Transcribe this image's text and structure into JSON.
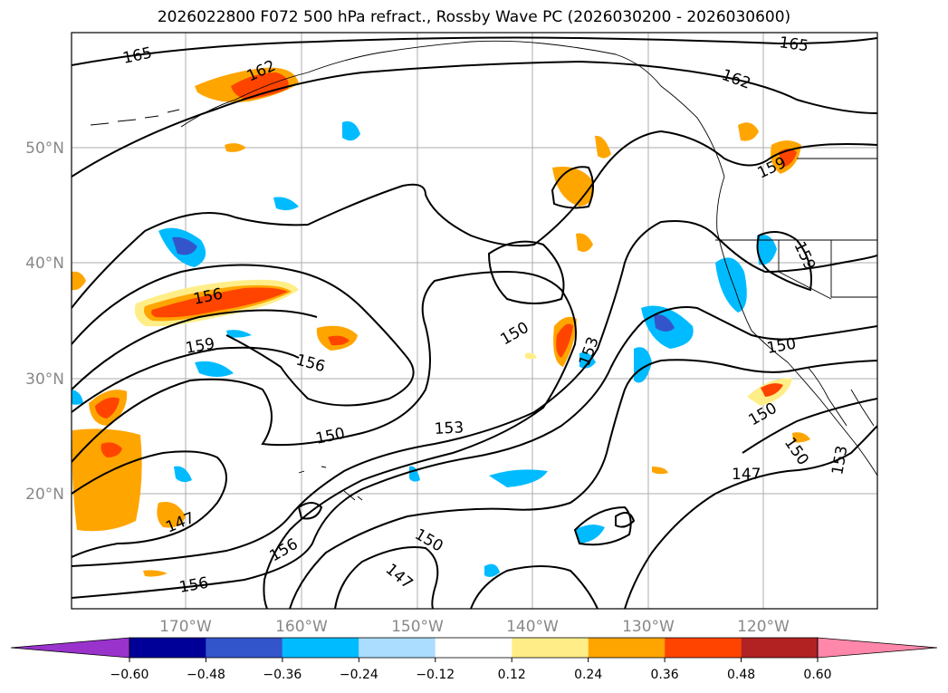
{
  "title": "2026022800 F072 500 hPa refract., Rossby Wave PC (2026030200 - 2026030600)",
  "lat_labels": [
    "50°N",
    "40°N",
    "30°N",
    "20°N"
  ],
  "lon_labels": [
    "170°W",
    "160°W",
    "150°W",
    "140°W",
    "130°W",
    "120°W"
  ],
  "contour_labels": [
    "165",
    "165",
    "162",
    "162",
    "159",
    "159",
    "159",
    "156",
    "156",
    "156",
    "156",
    "153",
    "153",
    "153",
    "150",
    "150",
    "150",
    "150",
    "150",
    "150",
    "147",
    "147",
    "147"
  ],
  "colorbar": {
    "ticks": [
      "−0.60",
      "−0.48",
      "−0.36",
      "−0.24",
      "−0.12",
      "0.12",
      "0.24",
      "0.36",
      "0.48",
      "0.60"
    ],
    "colors": [
      "#9933cc",
      "#000099",
      "#3355cc",
      "#00bbff",
      "#aaddff",
      "#ffffff",
      "#ffee88",
      "#ffa500",
      "#ff4400",
      "#b22222",
      "#ff88aa"
    ]
  }
}
